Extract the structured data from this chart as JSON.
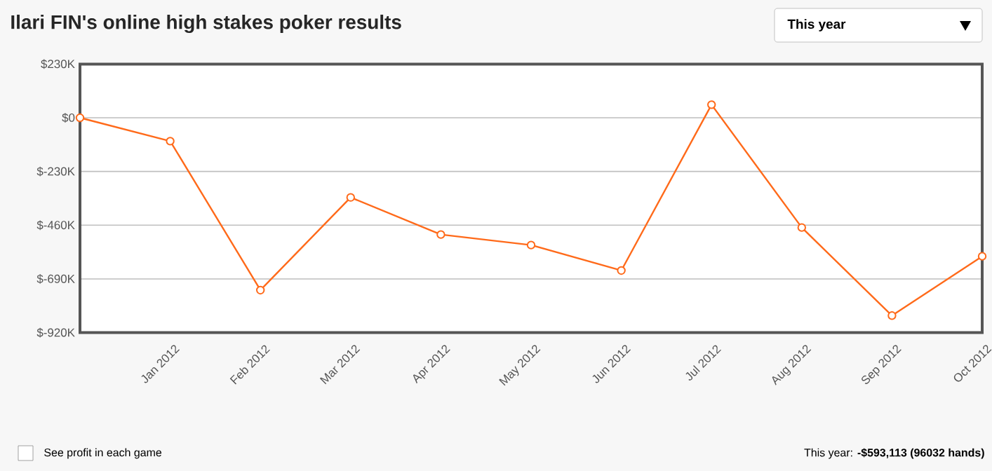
{
  "chart_data": {
    "type": "line",
    "title": "Ilari FIN's online high stakes poker results",
    "categories": [
      null,
      "Jan 2012",
      "Feb 2012",
      "Mar 2012",
      "Apr 2012",
      "May 2012",
      "Jun 2012",
      "Jul 2012",
      "Aug 2012",
      "Sep 2012",
      "Oct 2012"
    ],
    "series": [
      {
        "color": "#ff6a1a",
        "values": [
          0,
          -100,
          -738,
          -341,
          -500,
          -545,
          -654,
          56,
          -470,
          -847,
          -593
        ]
      }
    ],
    "ylim": [
      -920,
      230
    ],
    "yticks": [
      {
        "value": 230,
        "label": "$230K"
      },
      {
        "value": 0,
        "label": "$0"
      },
      {
        "value": -230,
        "label": "$-230K"
      },
      {
        "value": -460,
        "label": "$-460K"
      },
      {
        "value": -690,
        "label": "$-690K"
      },
      {
        "value": -920,
        "label": "$-920K"
      }
    ],
    "grid": "y",
    "marker": "circle",
    "line_style": "solid",
    "annotations": [
      "This year",
      "See profit in each game",
      "This year: **-$593,113 (96032 hands)**"
    ]
  }
}
